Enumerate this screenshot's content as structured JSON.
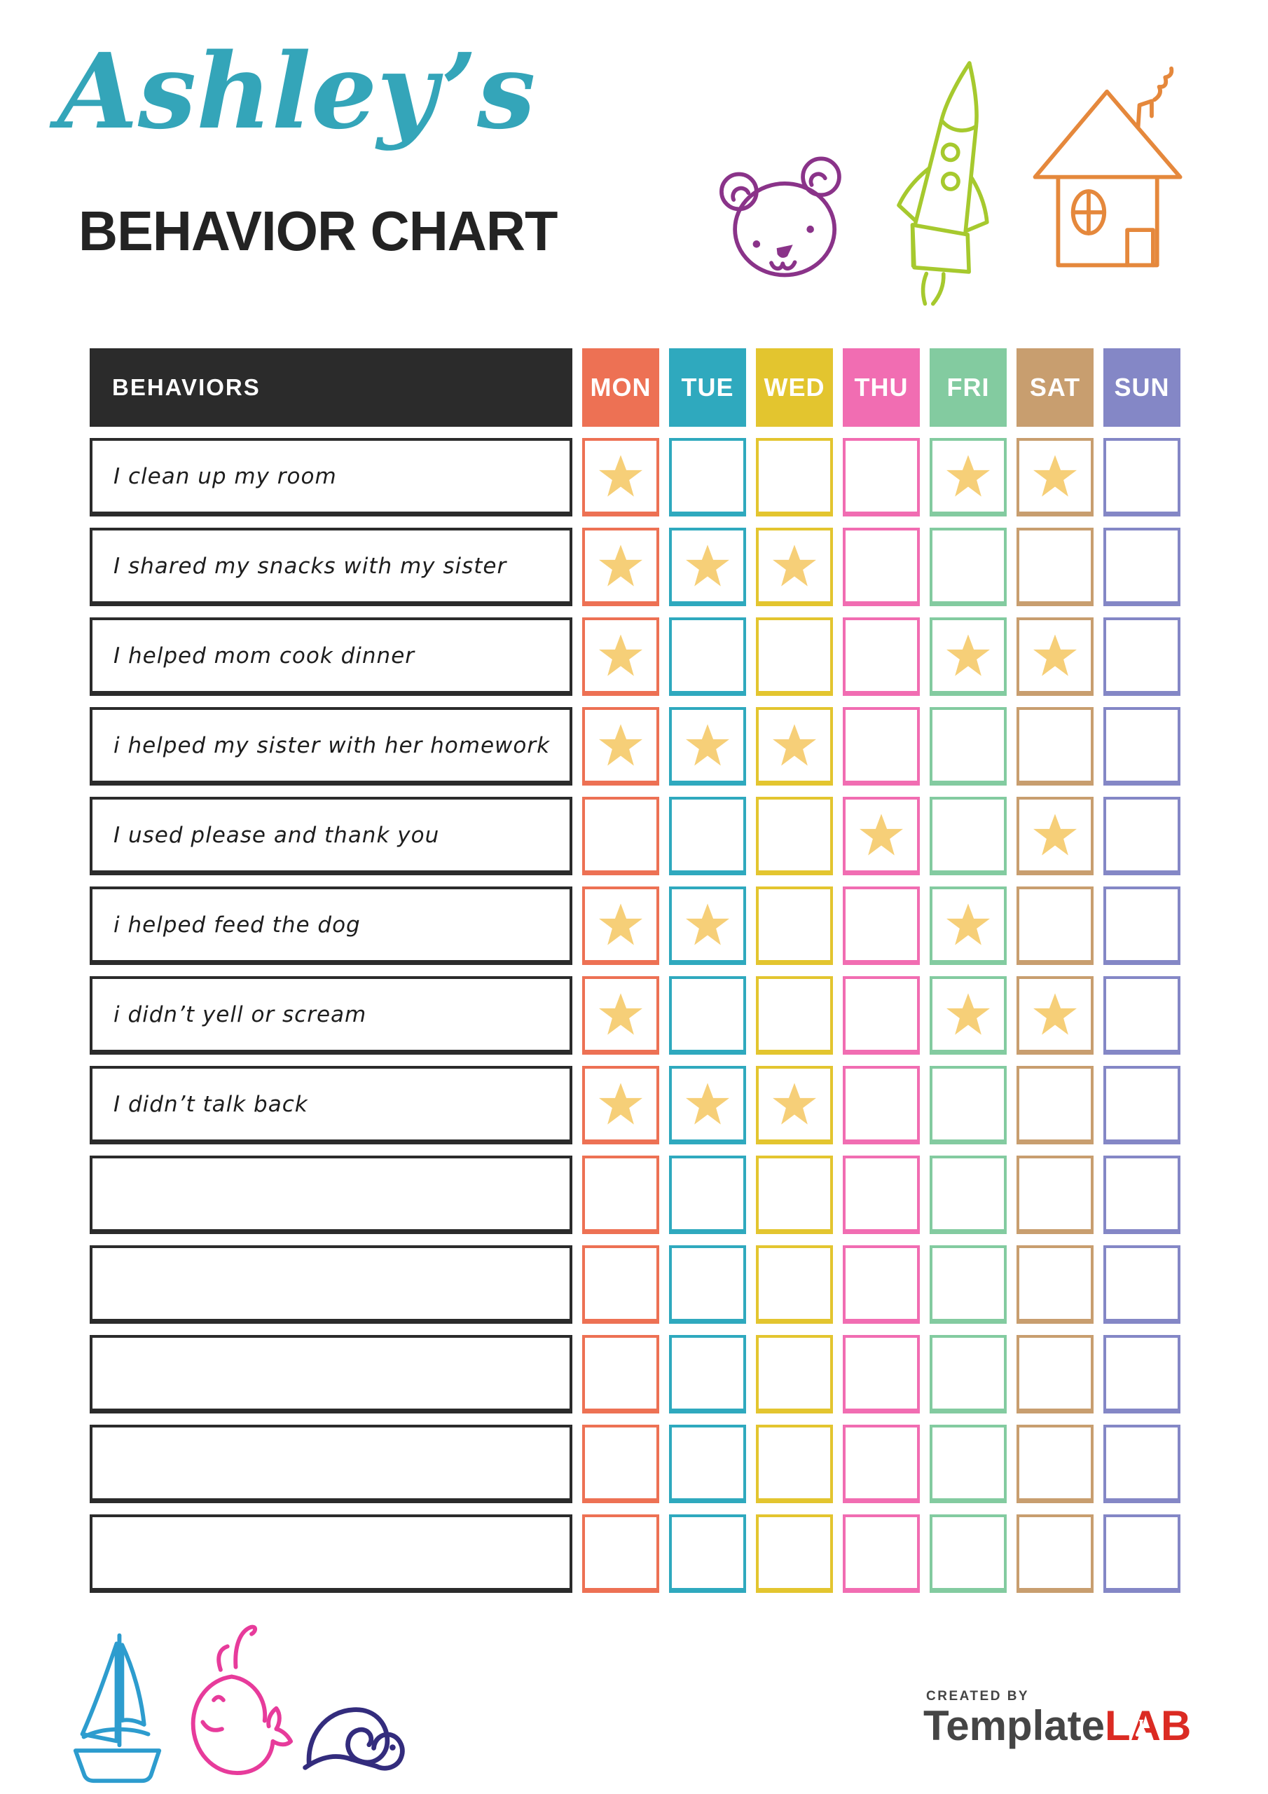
{
  "header": {
    "name_script": "Ashley’s",
    "title": "BEHAVIOR CHART",
    "script_color": "#34A5B9",
    "title_color": "#232323"
  },
  "icons": {
    "bear": {
      "color": "#8A3389"
    },
    "rocket": {
      "color": "#A6C92E"
    },
    "house": {
      "color": "#E5883C"
    },
    "boat": {
      "color": "#2D9CCE"
    },
    "whale": {
      "color": "#E73B9B"
    },
    "snail": {
      "color": "#332C7D"
    }
  },
  "table": {
    "behaviors_header": "BEHAVIORS",
    "header_bg": "#2B2B2B",
    "star_color": "#F6CF78",
    "days": [
      {
        "label": "MON",
        "color": "#ED7154"
      },
      {
        "label": "TUE",
        "color": "#2FA9BE"
      },
      {
        "label": "WED",
        "color": "#E3C52F"
      },
      {
        "label": "THU",
        "color": "#F16DB2"
      },
      {
        "label": "FRI",
        "color": "#83CBA0"
      },
      {
        "label": "SAT",
        "color": "#C89E6F"
      },
      {
        "label": "SUN",
        "color": "#8487C6"
      }
    ],
    "rows": [
      {
        "behavior": "I clean up my room",
        "stars": [
          1,
          0,
          0,
          0,
          1,
          1,
          0
        ]
      },
      {
        "behavior": "I shared my snacks with my sister",
        "stars": [
          1,
          1,
          1,
          0,
          0,
          0,
          0
        ]
      },
      {
        "behavior": "I helped mom cook dinner",
        "stars": [
          1,
          0,
          0,
          0,
          1,
          1,
          0
        ]
      },
      {
        "behavior": "i helped my sister with her homework",
        "stars": [
          1,
          1,
          1,
          0,
          0,
          0,
          0
        ]
      },
      {
        "behavior": "I used please and thank you",
        "stars": [
          0,
          0,
          0,
          1,
          0,
          1,
          0
        ]
      },
      {
        "behavior": "i helped feed the dog",
        "stars": [
          1,
          1,
          0,
          0,
          1,
          0,
          0
        ]
      },
      {
        "behavior": "i didn’t yell or scream",
        "stars": [
          1,
          0,
          0,
          0,
          1,
          1,
          0
        ]
      },
      {
        "behavior": "I didn’t talk back",
        "stars": [
          1,
          1,
          1,
          0,
          0,
          0,
          0
        ]
      },
      {
        "behavior": "",
        "stars": [
          0,
          0,
          0,
          0,
          0,
          0,
          0
        ]
      },
      {
        "behavior": "",
        "stars": [
          0,
          0,
          0,
          0,
          0,
          0,
          0
        ]
      },
      {
        "behavior": "",
        "stars": [
          0,
          0,
          0,
          0,
          0,
          0,
          0
        ]
      },
      {
        "behavior": "",
        "stars": [
          0,
          0,
          0,
          0,
          0,
          0,
          0
        ]
      },
      {
        "behavior": "",
        "stars": [
          0,
          0,
          0,
          0,
          0,
          0,
          0
        ]
      }
    ]
  },
  "footer": {
    "created_by": "CREATED BY",
    "brand_name": "Template",
    "brand_suffix": "LAB",
    "brand_gray": "#454545",
    "brand_red": "#DB2B23"
  }
}
